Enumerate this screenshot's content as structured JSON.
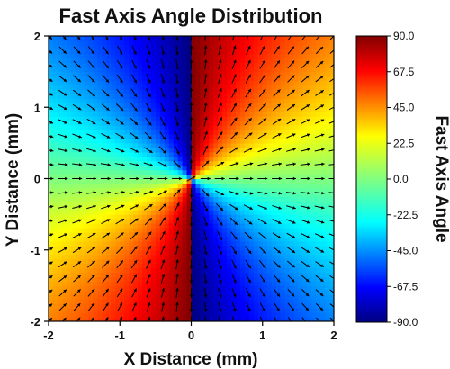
{
  "chart_data": {
    "type": "heatmap",
    "title": "Fast Axis Angle Distribution",
    "xlabel": "X Distance (mm)",
    "ylabel": "Y Distance (mm)",
    "colorbar_label": "Fast Axis Angle",
    "xlim": [
      -2,
      2
    ],
    "ylim": [
      -2,
      2
    ],
    "x_ticks": [
      "-2",
      "-1",
      "0",
      "1",
      "2"
    ],
    "y_ticks": [
      "-2",
      "-1",
      "0",
      "1",
      "2"
    ],
    "colorbar_range": [
      -90,
      90
    ],
    "colorbar_ticks": [
      "90.0",
      "67.5",
      "45.0",
      "22.5",
      "0.0",
      "-22.5",
      "-45.0",
      "-67.5",
      "-90.0"
    ],
    "colormap": "jet",
    "field": "angle of position vector from origin (degrees), wrapped to [-90, 90]",
    "overlay": "arrow vectors on a 21 x 21 grid indicating local fast-axis direction",
    "grid_n": 21
  }
}
